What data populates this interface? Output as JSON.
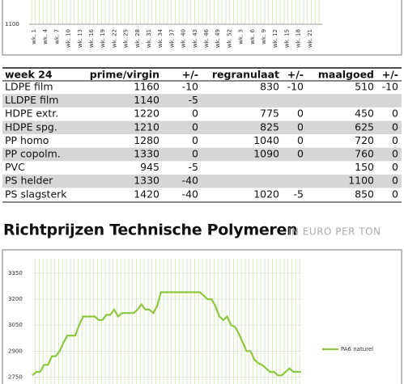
{
  "top_chart": {
    "yticks": [
      1100
    ],
    "categories": [
      "wk. 1",
      "wk. 4",
      "wk. 7",
      "wk. 10",
      "wk. 13",
      "wk. 16",
      "wk. 19",
      "wk. 22",
      "wk. 25",
      "wk. 28",
      "wk. 31",
      "wk. 34",
      "wk. 37",
      "wk. 40",
      "wk. 43",
      "wk. 46",
      "wk. 49",
      "wk. 52",
      "wk. 3",
      "wk. 6",
      "wk. 9",
      "wk. 12",
      "wk. 15",
      "wk. 18",
      "wk. 21"
    ]
  },
  "table": {
    "header": [
      "week 24",
      "prime/virgin",
      "+/-",
      "regranulaat",
      "+/-",
      "maalgoed",
      "+/-"
    ],
    "rows": [
      [
        "LDPE film",
        1160,
        -10,
        830,
        -10,
        510,
        -10
      ],
      [
        "LLDPE film",
        1140,
        -5,
        null,
        null,
        null,
        null
      ],
      [
        "HDPE extr.",
        1220,
        0,
        775,
        0,
        450,
        0
      ],
      [
        "HDPE spg.",
        1210,
        0,
        825,
        0,
        625,
        0
      ],
      [
        "PP homo",
        1280,
        0,
        1040,
        0,
        720,
        0
      ],
      [
        "PP copolm.",
        1330,
        0,
        1090,
        0,
        760,
        0
      ],
      [
        "PVC",
        945,
        -5,
        null,
        null,
        150,
        0
      ],
      [
        "PS helder",
        1330,
        -40,
        null,
        null,
        1100,
        0
      ],
      [
        "PS slagsterk",
        1420,
        -40,
        1020,
        -5,
        850,
        0
      ]
    ]
  },
  "chart_data": {
    "type": "line",
    "title": "Richtprijzen Technische Polymeren",
    "subtitle": "IN EURO PER TON",
    "ylim": [
      2710,
      3490
    ],
    "yticks": [
      2750,
      2900,
      3050,
      3200,
      3350
    ],
    "grid": true,
    "series": [
      {
        "name": "PA6 naturel",
        "color": "#8dc63f",
        "values": [
          2760,
          2780,
          2780,
          2820,
          2820,
          2870,
          2870,
          2900,
          2950,
          2990,
          2990,
          2990,
          3050,
          3100,
          3100,
          3100,
          3100,
          3080,
          3080,
          3110,
          3110,
          3140,
          3100,
          3120,
          3120,
          3120,
          3120,
          3140,
          3170,
          3140,
          3140,
          3120,
          3160,
          3240,
          3240,
          3240,
          3240,
          3240,
          3240,
          3240,
          3240,
          3240,
          3240,
          3240,
          3220,
          3200,
          3200,
          3160,
          3100,
          3080,
          3100,
          3050,
          3040,
          3000,
          2950,
          2900,
          2900,
          2850,
          2830,
          2820,
          2800,
          2780,
          2780,
          2760,
          2760,
          2780,
          2800,
          2780,
          2780,
          2780
        ]
      }
    ]
  }
}
